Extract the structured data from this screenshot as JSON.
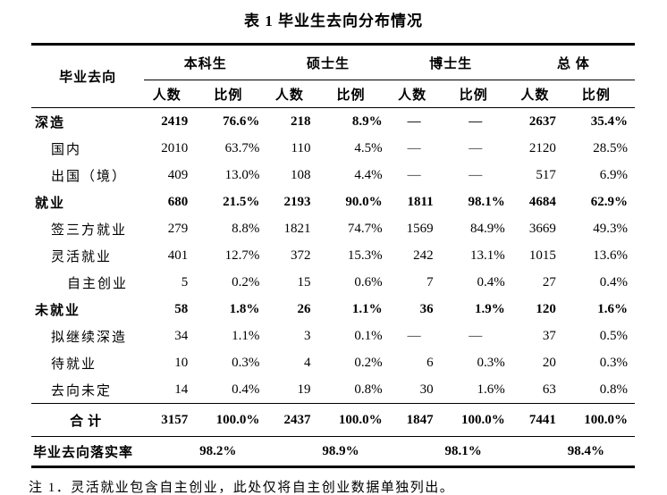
{
  "title": "表 1 毕业生去向分布情况",
  "table": {
    "row_header": "毕业去向",
    "groups": [
      "本科生",
      "硕士生",
      "博士生",
      "总 体"
    ],
    "subheaders": {
      "count": "人数",
      "ratio": "比例"
    },
    "rows": [
      {
        "label": "深造",
        "cells": [
          "2419",
          "76.6%",
          "218",
          "8.9%",
          "—",
          "—",
          "2637",
          "35.4%"
        ]
      },
      {
        "label": "国内",
        "cells": [
          "2010",
          "63.7%",
          "110",
          "4.5%",
          "—",
          "—",
          "2120",
          "28.5%"
        ]
      },
      {
        "label": "出国（境）",
        "cells": [
          "409",
          "13.0%",
          "108",
          "4.4%",
          "—",
          "—",
          "517",
          "6.9%"
        ]
      },
      {
        "label": "就业",
        "cells": [
          "680",
          "21.5%",
          "2193",
          "90.0%",
          "1811",
          "98.1%",
          "4684",
          "62.9%"
        ]
      },
      {
        "label": "签三方就业",
        "cells": [
          "279",
          "8.8%",
          "1821",
          "74.7%",
          "1569",
          "84.9%",
          "3669",
          "49.3%"
        ]
      },
      {
        "label": "灵活就业",
        "cells": [
          "401",
          "12.7%",
          "372",
          "15.3%",
          "242",
          "13.1%",
          "1015",
          "13.6%"
        ]
      },
      {
        "label": "自主创业",
        "cells": [
          "5",
          "0.2%",
          "15",
          "0.6%",
          "7",
          "0.4%",
          "27",
          "0.4%"
        ]
      },
      {
        "label": "未就业",
        "cells": [
          "58",
          "1.8%",
          "26",
          "1.1%",
          "36",
          "1.9%",
          "120",
          "1.6%"
        ]
      },
      {
        "label": "拟继续深造",
        "cells": [
          "34",
          "1.1%",
          "3",
          "0.1%",
          "—",
          "—",
          "37",
          "0.5%"
        ]
      },
      {
        "label": "待就业",
        "cells": [
          "10",
          "0.3%",
          "4",
          "0.2%",
          "6",
          "0.3%",
          "20",
          "0.3%"
        ]
      },
      {
        "label": "去向未定",
        "cells": [
          "14",
          "0.4%",
          "19",
          "0.8%",
          "30",
          "1.6%",
          "63",
          "0.8%"
        ]
      }
    ],
    "total_row": {
      "label": "合计",
      "cells": [
        "3157",
        "100.0%",
        "2437",
        "100.0%",
        "1847",
        "100.0%",
        "7441",
        "100.0%"
      ]
    },
    "rate_row": {
      "label": "毕业去向落实率",
      "values": [
        "98.2%",
        "98.9%",
        "98.1%",
        "98.4%"
      ]
    }
  },
  "note": "注 1．灵活就业包含自主创业，此处仅将自主创业数据单独列出。"
}
